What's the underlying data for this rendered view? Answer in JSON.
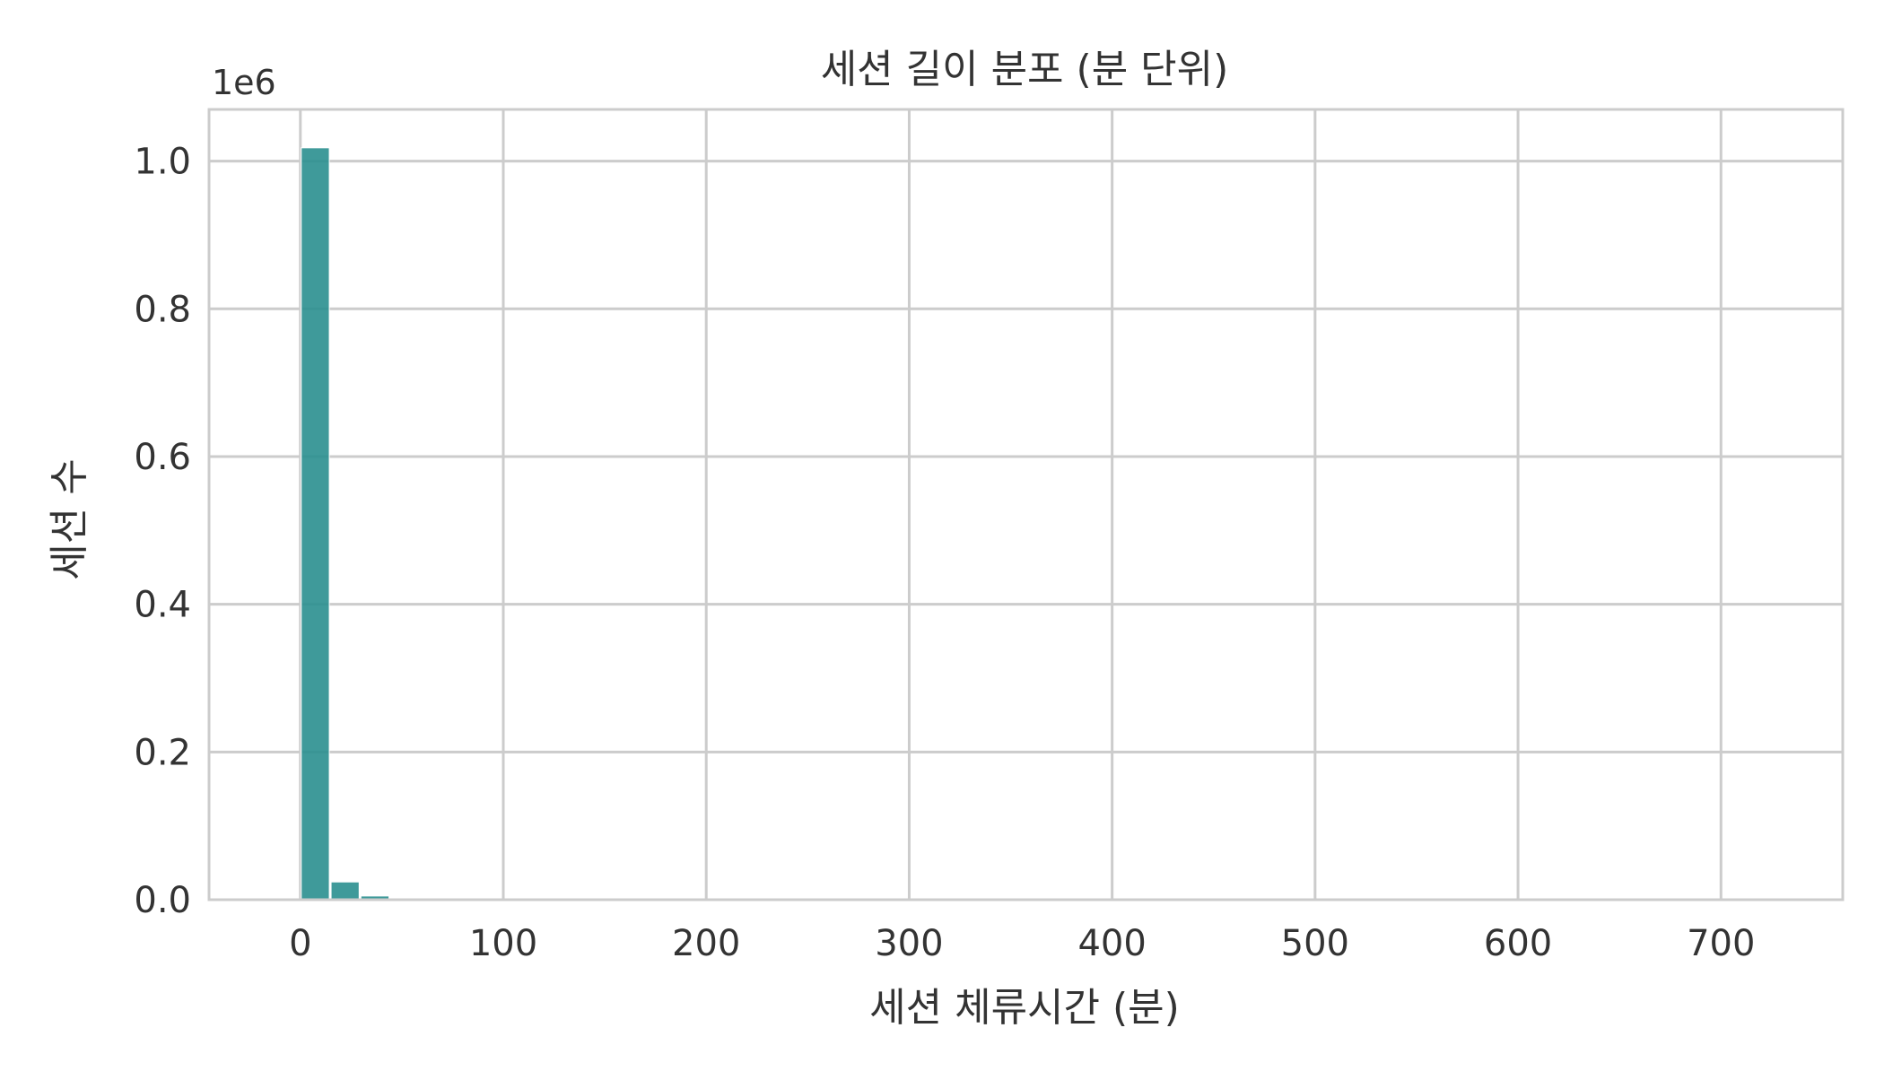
{
  "chart_data": {
    "type": "bar",
    "title": "세션 길이 분포 (분 단위)",
    "xlabel": "세션 체류시간 (분)",
    "ylabel": "세션 수",
    "y_offset_label": "1e6",
    "xlim": [
      -45,
      760
    ],
    "ylim": [
      0,
      1.07
    ],
    "xticks": [
      0,
      100,
      200,
      300,
      400,
      500,
      600,
      700
    ],
    "xtick_labels": [
      "0",
      "100",
      "200",
      "300",
      "400",
      "500",
      "600",
      "700"
    ],
    "yticks": [
      0.0,
      0.2,
      0.4,
      0.6,
      0.8,
      1.0
    ],
    "ytick_labels": [
      "0.0",
      "0.2",
      "0.4",
      "0.6",
      "0.8",
      "1.0"
    ],
    "grid": true,
    "bar_color": "#2a8f8f",
    "bins": [
      {
        "x0": 0,
        "x1": 14.7,
        "value": 1.018
      },
      {
        "x0": 14.7,
        "x1": 29.4,
        "value": 0.024
      },
      {
        "x0": 29.4,
        "x1": 44.1,
        "value": 0.005
      },
      {
        "x0": 44.1,
        "x1": 58.8,
        "value": 0.0015
      },
      {
        "x0": 58.8,
        "x1": 73.5,
        "value": 0.0006
      },
      {
        "x0": 73.5,
        "x1": 88.2,
        "value": 0.0003
      }
    ]
  }
}
